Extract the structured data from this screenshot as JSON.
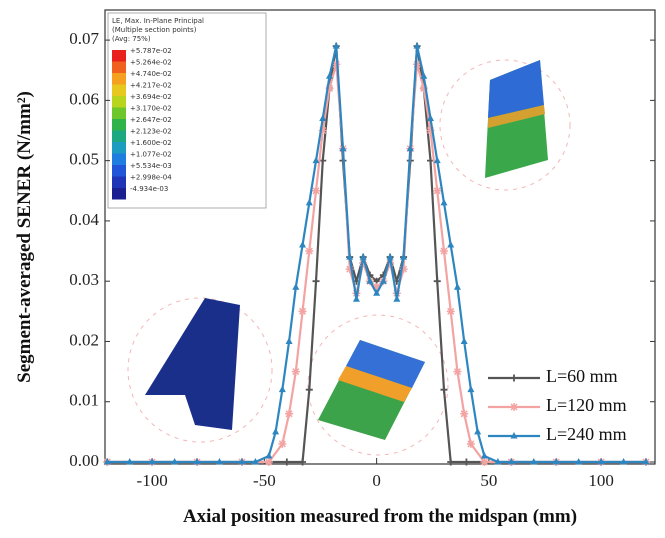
{
  "chart_data": {
    "type": "line",
    "x_label": "Axial position measured from the midspan (mm)",
    "y_label": "Segment-averaged SENER (N/mm²)",
    "xlim": [
      -121,
      124
    ],
    "ylim": [
      0,
      0.074
    ],
    "xticks": [
      -100,
      -50,
      0,
      50,
      100
    ],
    "yticks": [
      {
        "value": 0,
        "label": "0.00"
      },
      0.01,
      0.02,
      0.03,
      0.04,
      0.05,
      0.06,
      0.07
    ],
    "legend_position": "lower right",
    "series": [
      {
        "name": "L=60 mm",
        "color": "#555555",
        "marker": "plus",
        "x": [
          -120,
          -100,
          -80,
          -60,
          -40,
          -33,
          -30,
          -27,
          -24,
          -21,
          -18,
          -15,
          -12,
          -9,
          -6,
          -3,
          0,
          3,
          6,
          9,
          12,
          15,
          18,
          21,
          24,
          27,
          30,
          33,
          40,
          60,
          80,
          100,
          120
        ],
        "values": [
          0,
          0,
          0,
          0,
          0,
          0,
          0.012,
          0.03,
          0.05,
          0.062,
          0.069,
          0.05,
          0.034,
          0.03,
          0.034,
          0.031,
          0.03,
          0.031,
          0.034,
          0.03,
          0.034,
          0.05,
          0.069,
          0.062,
          0.05,
          0.03,
          0.012,
          0,
          0,
          0,
          0,
          0,
          0
        ]
      },
      {
        "name": "L=120 mm",
        "color": "#f4a3a3",
        "marker": "star",
        "x": [
          -120,
          -100,
          -80,
          -60,
          -48,
          -42,
          -39,
          -36,
          -33,
          -30,
          -27,
          -24,
          -21,
          -18,
          -15,
          -12,
          -9,
          -6,
          -3,
          0,
          3,
          6,
          9,
          12,
          15,
          18,
          21,
          24,
          27,
          30,
          33,
          36,
          39,
          42,
          48,
          60,
          80,
          100,
          120
        ],
        "values": [
          0,
          0,
          0,
          0,
          0,
          0.003,
          0.008,
          0.015,
          0.025,
          0.035,
          0.045,
          0.055,
          0.062,
          0.066,
          0.052,
          0.032,
          0.028,
          0.033,
          0.03,
          0.029,
          0.03,
          0.033,
          0.028,
          0.032,
          0.052,
          0.066,
          0.062,
          0.055,
          0.045,
          0.035,
          0.025,
          0.015,
          0.008,
          0.003,
          0,
          0,
          0,
          0,
          0
        ]
      },
      {
        "name": "L=240 mm",
        "color": "#2e86c1",
        "marker": "triangle",
        "x": [
          -120,
          -110,
          -100,
          -90,
          -80,
          -70,
          -60,
          -54,
          -48,
          -45,
          -42,
          -39,
          -36,
          -33,
          -30,
          -27,
          -24,
          -21,
          -18,
          -15,
          -12,
          -9,
          -6,
          -3,
          0,
          3,
          6,
          9,
          12,
          15,
          18,
          21,
          24,
          27,
          30,
          33,
          36,
          39,
          42,
          45,
          48,
          54,
          60,
          70,
          80,
          90,
          100,
          110,
          120
        ],
        "values": [
          0,
          0,
          0,
          0,
          0,
          0,
          0,
          0,
          0.001,
          0.005,
          0.012,
          0.02,
          0.029,
          0.036,
          0.043,
          0.05,
          0.057,
          0.064,
          0.069,
          0.052,
          0.034,
          0.027,
          0.034,
          0.03,
          0.028,
          0.03,
          0.034,
          0.027,
          0.034,
          0.052,
          0.069,
          0.064,
          0.057,
          0.05,
          0.043,
          0.036,
          0.029,
          0.02,
          0.012,
          0.005,
          0.001,
          0,
          0,
          0,
          0,
          0,
          0,
          0,
          0
        ]
      }
    ],
    "contour_legend": {
      "title": [
        "LE, Max. In-Plane Principal",
        "(Multiple section points)",
        "(Avg: 75%)"
      ],
      "labels": [
        "+5.787e-02",
        "+5.264e-02",
        "+4.740e-02",
        "+4.217e-02",
        "+3.694e-02",
        "+3.170e-02",
        "+2.647e-02",
        "+2.123e-02",
        "+1.600e-02",
        "+1.077e-02",
        "+5.534e-03",
        "+2.998e-04",
        "-4.934e-03"
      ]
    }
  }
}
